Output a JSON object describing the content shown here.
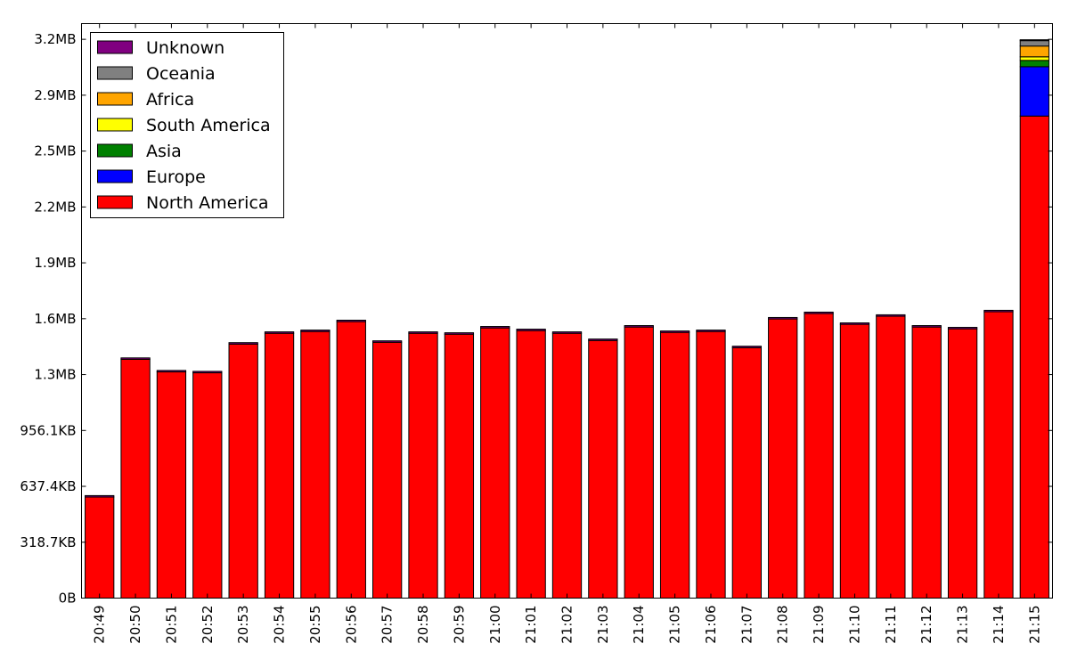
{
  "chart_data": {
    "type": "bar",
    "stacked": true,
    "categories": [
      "20:49",
      "20:50",
      "20:51",
      "20:52",
      "20:53",
      "20:54",
      "20:55",
      "20:56",
      "20:57",
      "20:58",
      "20:59",
      "21:00",
      "21:01",
      "21:02",
      "21:03",
      "21:04",
      "21:05",
      "21:06",
      "21:07",
      "21:08",
      "21:09",
      "21:10",
      "21:11",
      "21:12",
      "21:13",
      "21:14",
      "21:15"
    ],
    "y_unit": "MB",
    "ylim": [
      0,
      3.2
    ],
    "yticks": [
      {
        "value": 0,
        "label": "0B"
      },
      {
        "value": 0.3112,
        "label": "318.7KB"
      },
      {
        "value": 0.6225,
        "label": "637.4KB"
      },
      {
        "value": 0.9337,
        "label": "956.1KB"
      },
      {
        "value": 1.245,
        "label": "1.3MB"
      },
      {
        "value": 1.5562,
        "label": "1.6MB"
      },
      {
        "value": 1.8675,
        "label": "1.9MB"
      },
      {
        "value": 2.1787,
        "label": "2.2MB"
      },
      {
        "value": 2.49,
        "label": "2.5MB"
      },
      {
        "value": 2.8012,
        "label": "2.9MB"
      },
      {
        "value": 3.1125,
        "label": "3.2MB"
      }
    ],
    "legend_position": "top-left",
    "grid": false,
    "series": [
      {
        "name": "North America",
        "color": "#ff0000",
        "values": [
          0.563,
          1.33,
          1.26,
          1.255,
          1.415,
          1.475,
          1.485,
          1.54,
          1.425,
          1.475,
          1.47,
          1.505,
          1.49,
          1.475,
          1.435,
          1.51,
          1.48,
          1.485,
          1.395,
          1.555,
          1.585,
          1.525,
          1.57,
          1.51,
          1.5,
          1.595,
          2.685
        ]
      },
      {
        "name": "Europe",
        "color": "#0000ff",
        "values": [
          0,
          0,
          0,
          0,
          0,
          0,
          0,
          0,
          0,
          0,
          0,
          0,
          0,
          0,
          0,
          0,
          0,
          0,
          0,
          0,
          0,
          0,
          0,
          0,
          0,
          0,
          0.275
        ]
      },
      {
        "name": "Asia",
        "color": "#008000",
        "values": [
          0,
          0,
          0,
          0,
          0,
          0,
          0,
          0,
          0,
          0,
          0,
          0,
          0,
          0,
          0,
          0,
          0,
          0,
          0,
          0,
          0,
          0,
          0,
          0,
          0,
          0,
          0.035
        ]
      },
      {
        "name": "South America",
        "color": "#ffff00",
        "values": [
          0,
          0,
          0,
          0,
          0,
          0,
          0,
          0,
          0,
          0,
          0,
          0,
          0,
          0,
          0,
          0,
          0,
          0,
          0,
          0,
          0,
          0,
          0,
          0,
          0,
          0,
          0.02
        ]
      },
      {
        "name": "Africa",
        "color": "#ffa500",
        "values": [
          0,
          0,
          0,
          0,
          0,
          0,
          0,
          0,
          0,
          0,
          0,
          0,
          0,
          0,
          0,
          0,
          0,
          0,
          0,
          0,
          0,
          0,
          0,
          0,
          0,
          0,
          0.06
        ]
      },
      {
        "name": "Oceania",
        "color": "#808080",
        "values": [
          0,
          0,
          0,
          0,
          0,
          0,
          0,
          0,
          0,
          0,
          0,
          0,
          0,
          0,
          0,
          0,
          0,
          0,
          0,
          0,
          0,
          0,
          0,
          0,
          0,
          0,
          0.03
        ]
      },
      {
        "name": "Unknown",
        "color": "#800080",
        "values": [
          0.008,
          0.008,
          0.008,
          0.008,
          0.008,
          0.008,
          0.008,
          0.008,
          0.008,
          0.008,
          0.008,
          0.008,
          0.008,
          0.008,
          0.008,
          0.008,
          0.008,
          0.008,
          0.008,
          0.008,
          0.008,
          0.008,
          0.008,
          0.008,
          0.008,
          0.008,
          0.005
        ]
      }
    ],
    "legend_order": [
      "Unknown",
      "Oceania",
      "Africa",
      "South America",
      "Asia",
      "Europe",
      "North America"
    ]
  }
}
